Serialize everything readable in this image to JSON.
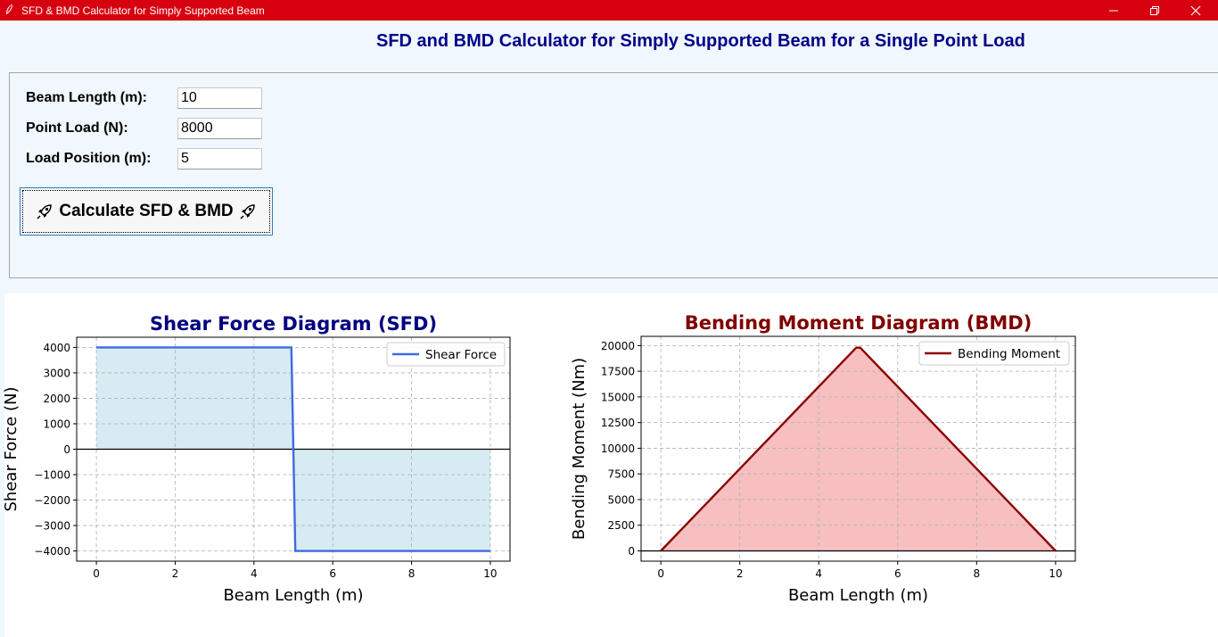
{
  "window": {
    "title": "SFD & BMD Calculator for Simply Supported Beam",
    "controls": [
      "minimize",
      "restore",
      "close"
    ]
  },
  "heading": "SFD and BMD Calculator for Simply Supported Beam for a Single Point Load",
  "form": {
    "beam_length_label": "Beam Length (m):",
    "beam_length_value": "10",
    "point_load_label": "Point Load (N):",
    "point_load_value": "8000",
    "load_position_label": "Load Position (m):",
    "load_position_value": "5",
    "calculate_label": "Calculate SFD & BMD"
  },
  "colors": {
    "titlebar": "#d6000f",
    "heading": "#000088",
    "sfd_line": "#4169e1",
    "sfd_fill": "#add8e6",
    "bmd_line": "#8b0000",
    "bmd_fill": "#f08080"
  },
  "chart_data": [
    {
      "type": "area",
      "title": "Shear Force Diagram (SFD)",
      "xlabel": "Beam Length (m)",
      "ylabel": "Shear Force (N)",
      "x": [
        0,
        4.95,
        5.05,
        10
      ],
      "series": [
        {
          "name": "Shear Force",
          "values": [
            4000,
            4000,
            -4000,
            -4000
          ]
        }
      ],
      "xlim": [
        -0.5,
        10.5
      ],
      "ylim": [
        -4400,
        4400
      ],
      "xticks": [
        0,
        2,
        4,
        6,
        8,
        10
      ],
      "yticks": [
        -4000,
        -3000,
        -2000,
        -1000,
        0,
        1000,
        2000,
        3000,
        4000
      ],
      "xtick_labels": [
        "0",
        "2",
        "4",
        "6",
        "8",
        "10"
      ],
      "ytick_labels": [
        "−4000",
        "−3000",
        "−2000",
        "−1000",
        "0",
        "1000",
        "2000",
        "3000",
        "4000"
      ],
      "legend": "top-right",
      "grid": true,
      "zero_line": true
    },
    {
      "type": "area",
      "title": "Bending Moment Diagram (BMD)",
      "xlabel": "Beam Length (m)",
      "ylabel": "Bending Moment (Nm)",
      "x": [
        0,
        4.95,
        5.05,
        10
      ],
      "series": [
        {
          "name": "Bending Moment",
          "values": [
            0,
            19800,
            19800,
            0
          ]
        }
      ],
      "xlim": [
        -0.5,
        10.5
      ],
      "ylim": [
        -1000,
        20900
      ],
      "xticks": [
        0,
        2,
        4,
        6,
        8,
        10
      ],
      "yticks": [
        0,
        2500,
        5000,
        7500,
        10000,
        12500,
        15000,
        17500,
        20000
      ],
      "xtick_labels": [
        "0",
        "2",
        "4",
        "6",
        "8",
        "10"
      ],
      "ytick_labels": [
        "0",
        "2500",
        "5000",
        "7500",
        "10000",
        "12500",
        "15000",
        "17500",
        "20000"
      ],
      "legend": "top-right",
      "grid": true,
      "zero_line": true
    }
  ]
}
